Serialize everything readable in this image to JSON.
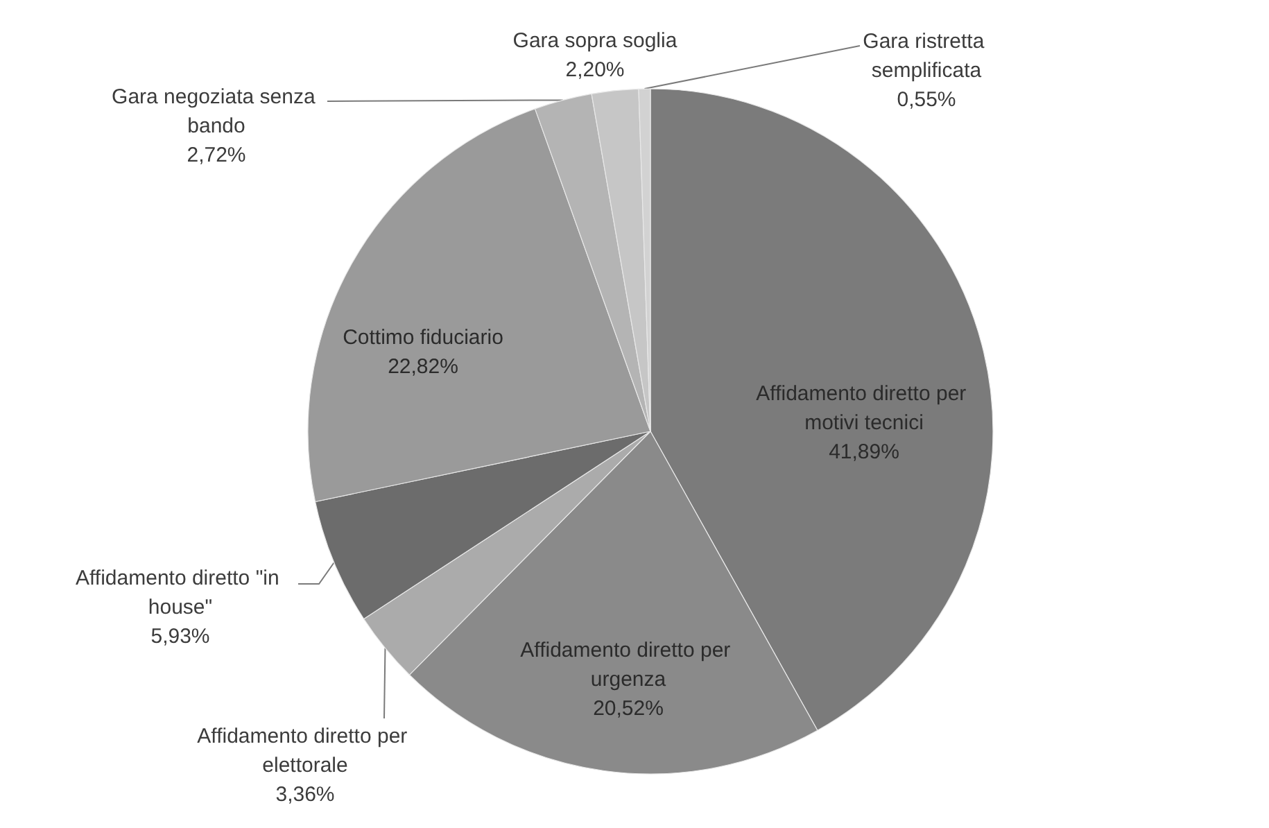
{
  "chart_data": {
    "type": "pie",
    "categories": [
      "Affidamento diretto per motivi tecnici",
      "Affidamento diretto per urgenza",
      "Affidamento diretto per elettorale",
      "Affidamento diretto \"in house\"",
      "Cottimo fiduciario",
      "Gara negoziata senza bando",
      "Gara sopra soglia",
      "Gara ristretta semplificata"
    ],
    "values": [
      41.89,
      20.52,
      3.36,
      5.93,
      22.82,
      2.72,
      2.2,
      0.55
    ],
    "colors": [
      "#7b7b7b",
      "#8a8a8a",
      "#ababab",
      "#6c6c6c",
      "#9a9a9a",
      "#b4b4b4",
      "#c6c6c6",
      "#d2d2d2"
    ],
    "value_labels": [
      "41,89%",
      "20,52%",
      "3,36%",
      "5,93%",
      "22,82%",
      "2,72%",
      "2,20%",
      "0,55%"
    ]
  }
}
